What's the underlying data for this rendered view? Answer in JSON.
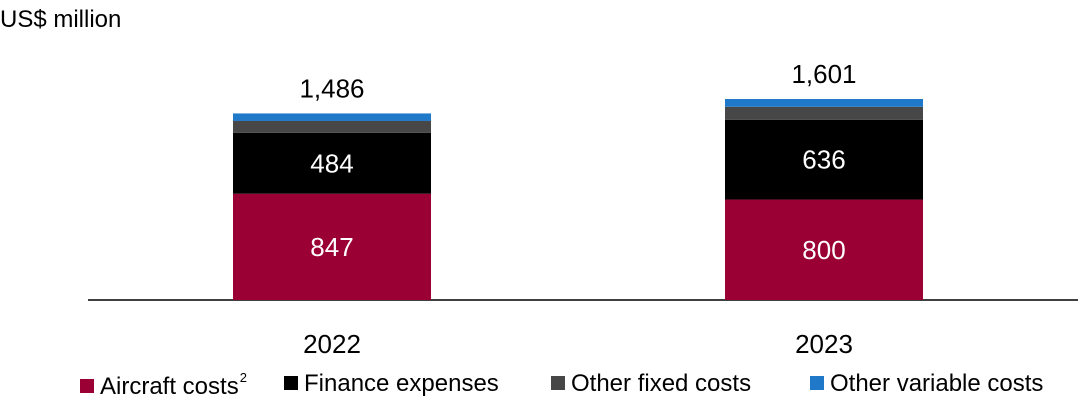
{
  "chart_data": {
    "type": "bar",
    "stacked": true,
    "unit_label": "US$ million",
    "categories": [
      "2022",
      "2023"
    ],
    "totals": [
      "1,486",
      "1,601"
    ],
    "series": [
      {
        "name": "Aircraft costs",
        "note": "2",
        "color": "#9b0034",
        "values": [
          847,
          800
        ],
        "labels": [
          "847",
          "800"
        ]
      },
      {
        "name": "Finance expenses",
        "color": "#000000",
        "values": [
          484,
          636
        ],
        "labels": [
          "484",
          "636"
        ]
      },
      {
        "name": "Other fixed costs",
        "color": "#474747",
        "values": [
          95,
          103
        ],
        "labels": [
          "",
          ""
        ]
      },
      {
        "name": "Other variable costs",
        "color": "#1f78c8",
        "values": [
          60,
          62
        ],
        "labels": [
          "",
          ""
        ]
      }
    ],
    "xlabel": "",
    "ylabel": "",
    "ylim": [
      0,
      1601
    ],
    "grid": false,
    "legend_position": "bottom"
  }
}
